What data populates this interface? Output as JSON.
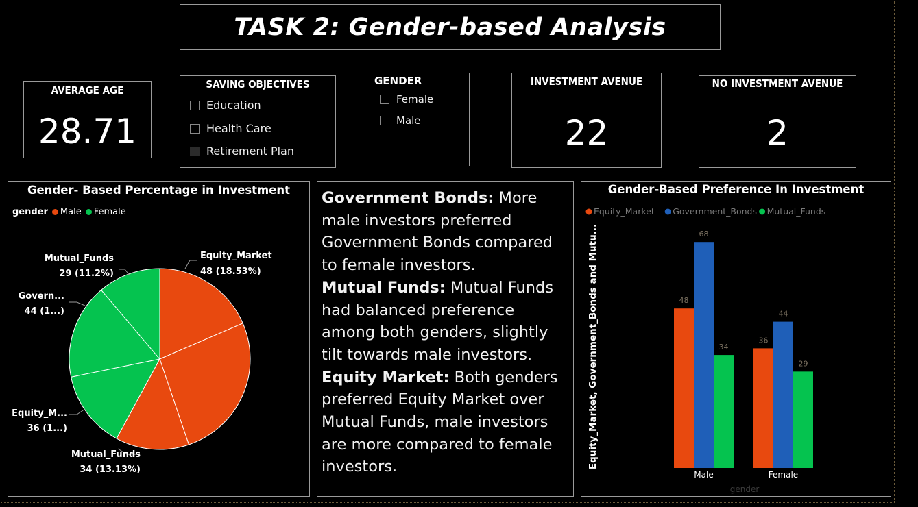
{
  "header": {
    "title": "TASK 2: Gender-based Analysis"
  },
  "cards": {
    "average_age": {
      "label": "AVERAGE AGE",
      "value": "28.71"
    },
    "investment_avenue": {
      "label": "INVESTMENT AVENUE",
      "value": "22"
    },
    "no_investment_avenue": {
      "label": "NO INVESTMENT AVENUE",
      "value": "2"
    }
  },
  "slicers": {
    "saving_objectives": {
      "title": "SAVING OBJECTIVES",
      "items": [
        {
          "label": "Education",
          "checked": false
        },
        {
          "label": "Health Care",
          "checked": false
        },
        {
          "label": "Retirement Plan",
          "checked": false
        }
      ]
    },
    "gender": {
      "title": "GENDER",
      "items": [
        {
          "label": "Female",
          "checked": false
        },
        {
          "label": "Male",
          "checked": false
        }
      ]
    }
  },
  "pie_panel": {
    "title": "Gender- Based Percentage in Investment",
    "legend_title": "gender",
    "legend": [
      {
        "label": "Male",
        "color": "#E8490F"
      },
      {
        "label": "Female",
        "color": "#05C34F"
      }
    ],
    "labels": {
      "equity_male_name": "Equity_Market",
      "equity_male_val": "48 (18.53%)",
      "mutual_female_name": "Mutual_Funds",
      "mutual_female_val": "29 (11.2%)",
      "gov_female_name": "Govern...",
      "gov_female_val": "44 (1...)",
      "equity_female_name": "Equity_M...",
      "equity_female_val": "36 (1...)",
      "mutual_male_name": "Mutual_Funds",
      "mutual_male_val": "34 (13.13%)"
    }
  },
  "insights": {
    "p1_head": "Government Bonds:",
    "p1_body": " More male investors preferred Government Bonds compared to female investors.",
    "p2_head": "Mutual Funds:",
    "p2_body": " Mutual Funds had balanced preference among both genders, slightly tilt towards male investors.",
    "p3_head": "Equity Market:",
    "p3_body": " Both genders preferred Equity Market over Mutual Funds, male investors are more compared to female investors."
  },
  "bar_panel": {
    "title": "Gender-Based Preference In Investment"
  },
  "chart_data": [
    {
      "type": "pie",
      "title": "Gender- Based Percentage in Investment",
      "legend_title": "gender",
      "legend_position": "top-left",
      "slices": [
        {
          "group": "Male",
          "category": "Equity_Market",
          "value": 48,
          "percent": 18.53,
          "color": "#E8490F"
        },
        {
          "group": "Male",
          "category": "Government_Bonds",
          "value": 68,
          "percent": 26.25,
          "color": "#E8490F"
        },
        {
          "group": "Male",
          "category": "Mutual_Funds",
          "value": 34,
          "percent": 13.13,
          "color": "#E8490F"
        },
        {
          "group": "Female",
          "category": "Equity_Market",
          "value": 36,
          "percent": 13.9,
          "color": "#05C34F"
        },
        {
          "group": "Female",
          "category": "Government_Bonds",
          "value": 44,
          "percent": 16.99,
          "color": "#05C34F"
        },
        {
          "group": "Female",
          "category": "Mutual_Funds",
          "value": 29,
          "percent": 11.2,
          "color": "#05C34F"
        }
      ]
    },
    {
      "type": "bar",
      "title": "Gender-Based Preference In Investment",
      "xlabel": "gender",
      "ylabel": "Equity_Market, Government_Bonds and Mutu...",
      "categories": [
        "Male",
        "Female"
      ],
      "series": [
        {
          "name": "Equity_Market",
          "values": [
            48,
            36
          ],
          "color": "#E8490F"
        },
        {
          "name": "Government_Bonds",
          "values": [
            68,
            44
          ],
          "color": "#1F5FB8"
        },
        {
          "name": "Mutual_Funds",
          "values": [
            34,
            29
          ],
          "color": "#05C34F"
        }
      ],
      "ylim": [
        0,
        80
      ],
      "grid": false,
      "legend_position": "top-left"
    }
  ]
}
